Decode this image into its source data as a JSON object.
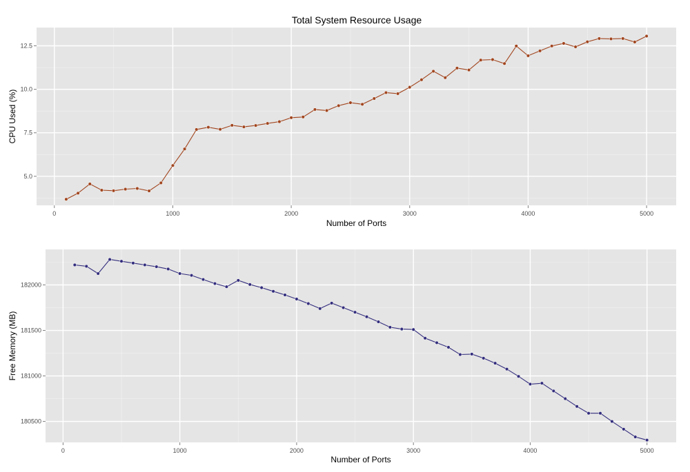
{
  "chart_data": [
    {
      "type": "line",
      "title": "Total System Resource Usage",
      "xlabel": "Number of Ports",
      "ylabel": "CPU Used (%)",
      "xlim": [
        -150,
        5250
      ],
      "ylim": [
        3.33,
        13.55
      ],
      "xticks": [
        0,
        1000,
        2000,
        3000,
        4000,
        5000
      ],
      "xtick_labels": [
        "0",
        "1000",
        "2000",
        "3000",
        "4000",
        "5000"
      ],
      "yticks": [
        5,
        7.5,
        10,
        12.5
      ],
      "ytick_labels": [
        "5.0",
        "7.5",
        "10.0",
        "12.5"
      ],
      "grid": true,
      "color": "#a1451e",
      "x": [
        100,
        200,
        300,
        400,
        500,
        600,
        700,
        800,
        900,
        1000,
        1100,
        1200,
        1300,
        1400,
        1500,
        1600,
        1700,
        1800,
        1900,
        2000,
        2100,
        2200,
        2300,
        2400,
        2500,
        2600,
        2700,
        2800,
        2900,
        3000,
        3100,
        3200,
        3300,
        3400,
        3500,
        3600,
        3700,
        3800,
        3900,
        4000,
        4100,
        4200,
        4300,
        4400,
        4500,
        4600,
        4700,
        4800,
        4900,
        5000
      ],
      "values": [
        3.68,
        4.03,
        4.56,
        4.2,
        4.17,
        4.26,
        4.3,
        4.16,
        4.62,
        5.62,
        6.57,
        7.69,
        7.82,
        7.7,
        7.93,
        7.84,
        7.92,
        8.04,
        8.14,
        8.37,
        8.41,
        8.84,
        8.78,
        9.06,
        9.23,
        9.14,
        9.47,
        9.81,
        9.75,
        10.12,
        10.55,
        11.04,
        10.67,
        11.22,
        11.11,
        11.68,
        11.71,
        11.48,
        12.49,
        11.93,
        12.21,
        12.49,
        12.64,
        12.44,
        12.73,
        12.92,
        12.9,
        12.92,
        12.72,
        13.06
      ]
    },
    {
      "type": "line",
      "title": "",
      "xlabel": "Number of Ports",
      "ylabel": "Free Memory (MB)",
      "xlim": [
        -150,
        5250
      ],
      "ylim": [
        180270,
        182390
      ],
      "xticks": [
        0,
        1000,
        2000,
        3000,
        4000,
        5000
      ],
      "xtick_labels": [
        "0",
        "1000",
        "2000",
        "3000",
        "4000",
        "5000"
      ],
      "yticks": [
        180500,
        181000,
        181500,
        182000
      ],
      "ytick_labels": [
        "180500",
        "181000",
        "181500",
        "182000"
      ],
      "grid": true,
      "color": "#332d7d",
      "x": [
        100,
        200,
        300,
        400,
        500,
        600,
        700,
        800,
        900,
        1000,
        1100,
        1200,
        1300,
        1400,
        1500,
        1600,
        1700,
        1800,
        1900,
        2000,
        2100,
        2200,
        2300,
        2400,
        2500,
        2600,
        2700,
        2800,
        2900,
        3000,
        3100,
        3200,
        3300,
        3400,
        3500,
        3600,
        3700,
        3800,
        3900,
        4000,
        4100,
        4200,
        4300,
        4400,
        4500,
        4600,
        4700,
        4800,
        4900,
        5000
      ],
      "values": [
        182220,
        182205,
        182125,
        182280,
        182260,
        182240,
        182220,
        182200,
        182175,
        182125,
        182105,
        182060,
        182015,
        181980,
        182050,
        182005,
        181970,
        181930,
        181890,
        181845,
        181795,
        181740,
        181800,
        181750,
        181700,
        181650,
        181595,
        181535,
        181515,
        181510,
        181415,
        181365,
        181315,
        181235,
        181240,
        181195,
        181140,
        181075,
        180995,
        180910,
        180920,
        180835,
        180750,
        180665,
        180590,
        180590,
        180500,
        180415,
        180330,
        180295
      ]
    }
  ]
}
